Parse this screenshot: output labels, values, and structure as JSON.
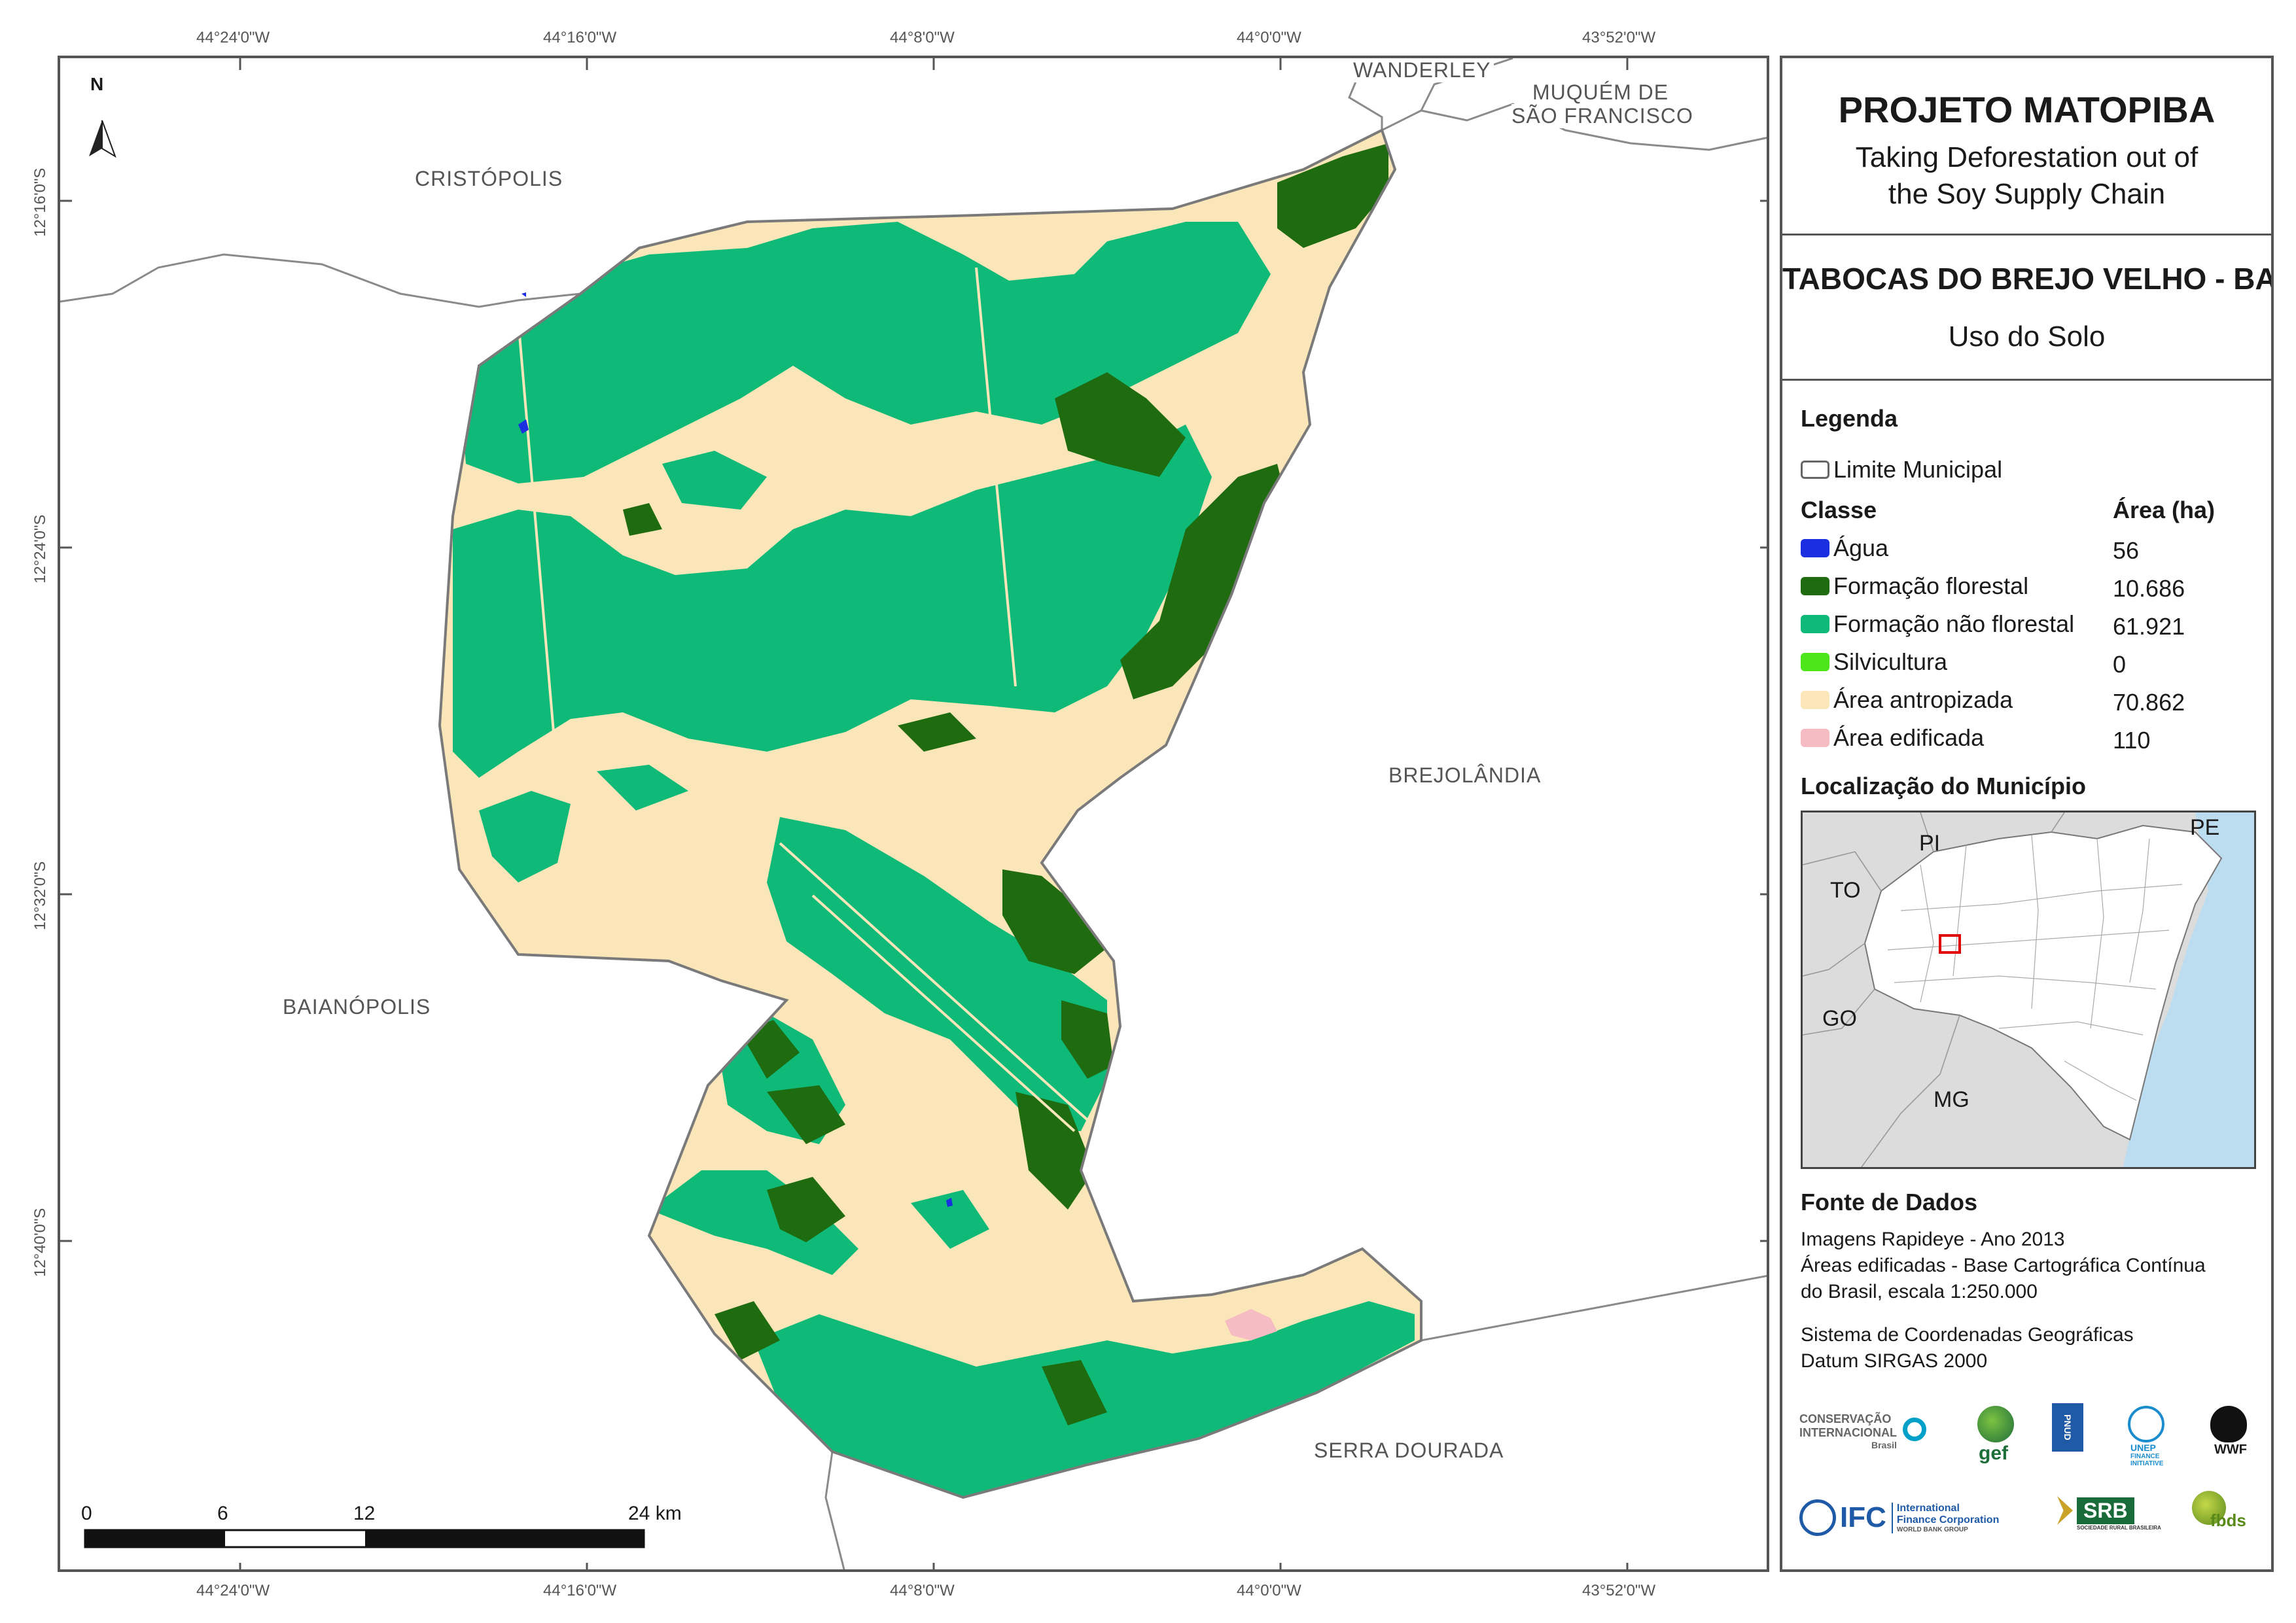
{
  "map": {
    "coords_top": [
      "44°24'0\"W",
      "44°16'0\"W",
      "44°8'0\"W",
      "44°0'0\"W",
      "43°52'0\"W"
    ],
    "coords_bottom": [
      "44°24'0\"W",
      "44°16'0\"W",
      "44°8'0\"W",
      "44°0'0\"W",
      "43°52'0\"W"
    ],
    "coords_left": [
      "12°16'0\"S",
      "12°24'0\"S",
      "12°32'0\"S",
      "12°40'0\"S"
    ],
    "north_label": "N",
    "neighbors": {
      "wanderley": "WANDERLEY",
      "muquem_1": "MUQUÉM DE",
      "muquem_2": "SÃO FRANCISCO",
      "cristopolis": "CRISTÓPOLIS",
      "brejolandia": "BREJOLÂNDIA",
      "baianopolis": "BAIANÓPOLIS",
      "serra_dourada": "SERRA DOURADA"
    },
    "scale": {
      "labels": [
        "0",
        "6",
        "12",
        "24 km"
      ]
    }
  },
  "panel": {
    "title": "PROJETO MATOPIBA",
    "subtitle_1": "Taking Deforestation out of",
    "subtitle_2": "the Soy Supply Chain",
    "municipality": "TABOCAS DO BREJO VELHO - BA",
    "theme": "Uso do Solo",
    "legend_title": "Legenda",
    "limit_label": "Limite Municipal",
    "class_header": "Classe",
    "area_header": "Área (ha)",
    "classes": [
      {
        "label": "Água",
        "area": "56",
        "color": "#1a2fe0"
      },
      {
        "label": "Formação florestal",
        "area": "10.686",
        "color": "#1f6b0f"
      },
      {
        "label": "Formação não florestal",
        "area": "61.921",
        "color": "#0fba79"
      },
      {
        "label": "Silvicultura",
        "area": "0",
        "color": "#4ce61a"
      },
      {
        "label": "Área antropizada",
        "area": "70.862",
        "color": "#fae6b8"
      },
      {
        "label": "Área edificada",
        "area": "110",
        "color": "#f5bcc4"
      }
    ],
    "location_title": "Localização do Município",
    "states": [
      "PI",
      "PE",
      "TO",
      "GO",
      "MG"
    ],
    "source_title": "Fonte de Dados",
    "source_lines": [
      "Imagens Rapideye - Ano 2013",
      "Áreas edificadas - Base Cartográfica Contínua",
      "do Brasil, escala 1:250.000"
    ],
    "crs_lines": [
      "Sistema de Coordenadas Geográficas",
      "Datum SIRGAS 2000"
    ],
    "logos": {
      "ci_1": "CONSERVAÇÃO",
      "ci_2": "INTERNACIONAL",
      "ci_3": "Brasil",
      "gef": "gef",
      "pnud": "PNUD",
      "unep_1": "UNEP",
      "unep_2": "FINANCE",
      "unep_3": "INITIATIVE",
      "wwf": "WWF",
      "ifc": "IFC",
      "ifc_1": "International",
      "ifc_2": "Finance Corporation",
      "ifc_3": "WORLD BANK GROUP",
      "srb": "SRB",
      "srb_sub": "SOCIEDADE RURAL BRASILEIRA",
      "fbds": "fbds"
    }
  }
}
